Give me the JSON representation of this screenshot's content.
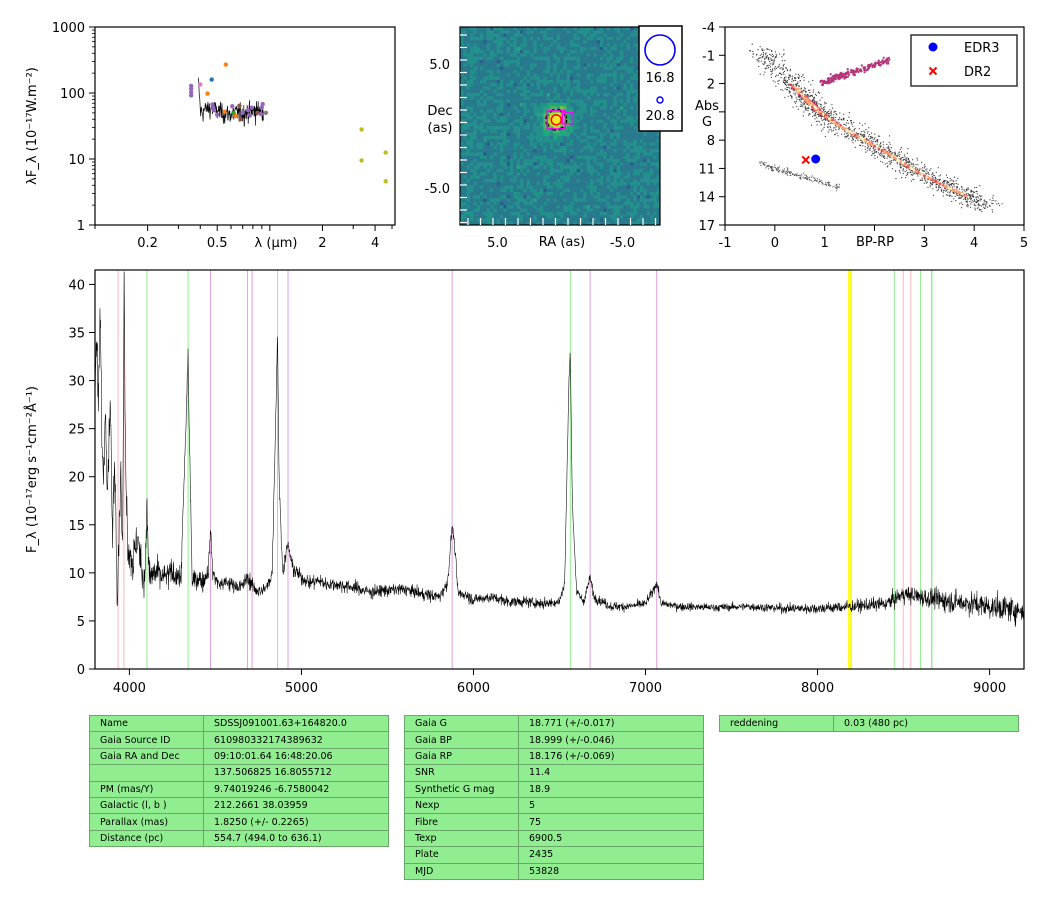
{
  "colors": {
    "spectrum": "#000000",
    "table_bg": "#90ee90",
    "edr3": "#0000ff",
    "dr2": "#ff0000",
    "halpha": "#90ee90",
    "helium": "#dda0dd",
    "calcium": "#ffb6c1",
    "telluric": "#ffff00"
  },
  "chart_data": [
    {
      "id": "sed",
      "type": "scatter",
      "xscale": "log",
      "yscale": "log",
      "xlim": [
        0.1,
        5.2
      ],
      "ylim": [
        1,
        1000
      ],
      "xlabel": "λ (μm)",
      "ylabel": "λF_λ (10⁻¹⁷W.m⁻²)",
      "x_ticks": [
        {
          "v": 0.2,
          "label": "0.2"
        },
        {
          "v": 0.5,
          "label": "0.5"
        },
        {
          "v": 2,
          "label": "2"
        },
        {
          "v": 4,
          "label": "4"
        }
      ],
      "y_ticks": [
        {
          "v": 1,
          "label": "1"
        },
        {
          "v": 10,
          "label": "10"
        },
        {
          "v": 100,
          "label": "100"
        },
        {
          "v": 1000,
          "label": "1000"
        }
      ],
      "points": [
        {
          "x": 0.355,
          "y": 128,
          "c": "#9467bd"
        },
        {
          "x": 0.355,
          "y": 115,
          "c": "#9467bd"
        },
        {
          "x": 0.355,
          "y": 102,
          "c": "#9467bd"
        },
        {
          "x": 0.355,
          "y": 92,
          "c": "#9467bd"
        },
        {
          "x": 0.4,
          "y": 135,
          "c": "#e377c2"
        },
        {
          "x": 0.44,
          "y": 98,
          "c": "#ff7f0e"
        },
        {
          "x": 0.465,
          "y": 160,
          "c": "#1f77b4"
        },
        {
          "x": 0.47,
          "y": 67,
          "c": "#9467bd"
        },
        {
          "x": 0.475,
          "y": 60,
          "c": "#9467bd"
        },
        {
          "x": 0.48,
          "y": 55,
          "c": "#9467bd"
        },
        {
          "x": 0.5,
          "y": 47,
          "c": "#9467bd"
        },
        {
          "x": 0.55,
          "y": 52,
          "c": "#ff7f0e"
        },
        {
          "x": 0.56,
          "y": 270,
          "c": "#ff7f0e"
        },
        {
          "x": 0.61,
          "y": 63,
          "c": "#9467bd"
        },
        {
          "x": 0.62,
          "y": 50,
          "c": "#2ca02c"
        },
        {
          "x": 0.64,
          "y": 45,
          "c": "#ff7f0e"
        },
        {
          "x": 0.67,
          "y": 64,
          "c": "#8c564b"
        },
        {
          "x": 0.68,
          "y": 40,
          "c": "#8c564b"
        },
        {
          "x": 0.7,
          "y": 50,
          "c": "#9467bd"
        },
        {
          "x": 0.75,
          "y": 55,
          "c": "#9467bd"
        },
        {
          "x": 0.77,
          "y": 46,
          "c": "#9467bd"
        },
        {
          "x": 0.79,
          "y": 60,
          "c": "#9467bd"
        },
        {
          "x": 0.85,
          "y": 50,
          "c": "#8c564b"
        },
        {
          "x": 0.89,
          "y": 48,
          "c": "#9467bd"
        },
        {
          "x": 0.9,
          "y": 60,
          "c": "#9467bd"
        },
        {
          "x": 0.91,
          "y": 68,
          "c": "#9467bd"
        },
        {
          "x": 0.95,
          "y": 50,
          "c": "#7f7f7f"
        },
        {
          "x": 3.35,
          "y": 28,
          "c": "#bcbd22"
        },
        {
          "x": 3.35,
          "y": 9.5,
          "c": "#bcbd22"
        },
        {
          "x": 4.6,
          "y": 12.5,
          "c": "#bcbd22"
        },
        {
          "x": 4.6,
          "y": 4.6,
          "c": "#bcbd22"
        }
      ],
      "spectrum_envelope": [
        [
          0.39,
          140
        ],
        [
          0.4,
          52
        ],
        [
          0.45,
          60
        ],
        [
          0.5,
          55
        ],
        [
          0.55,
          50
        ],
        [
          0.6,
          48
        ],
        [
          0.65,
          52
        ],
        [
          0.7,
          50
        ],
        [
          0.8,
          55
        ],
        [
          0.9,
          58
        ],
        [
          0.92,
          50
        ]
      ]
    },
    {
      "id": "image",
      "type": "heatmap",
      "xlabel": "RA (as)",
      "ylabel": "Dec\n(as)",
      "x_ticks": [
        {
          "v": 5,
          "label": "5.0"
        },
        {
          "v": -5,
          "label": "-5.0"
        }
      ],
      "y_ticks": [
        {
          "v": 5,
          "label": "5.0"
        },
        {
          "v": -5,
          "label": "-5.0"
        }
      ],
      "xlim": [
        8,
        -8
      ],
      "ylim": [
        -8,
        8
      ],
      "legend": [
        {
          "label": "16.8",
          "size": "large"
        },
        {
          "label": "20.8",
          "size": "small"
        }
      ]
    },
    {
      "id": "hrd",
      "type": "scatter",
      "xlabel": "BP-RP",
      "ylabel": "Abs\nG",
      "xlim": [
        -1,
        5
      ],
      "ylim": [
        17,
        -4
      ],
      "x_ticks": [
        {
          "v": -1,
          "label": "-1"
        },
        {
          "v": 0,
          "label": "0"
        },
        {
          "v": 1,
          "label": "1"
        },
        {
          "v": 2,
          "label": ""
        },
        {
          "v": 3,
          "label": "3"
        },
        {
          "v": 4,
          "label": "4"
        },
        {
          "v": 5,
          "label": "5"
        }
      ],
      "y_ticks": [
        {
          "v": -4,
          "label": "-4"
        },
        {
          "v": -1,
          "label": "-1"
        },
        {
          "v": 2,
          "label": "2"
        },
        {
          "v": 5,
          "label": ""
        },
        {
          "v": 8,
          "label": "8"
        },
        {
          "v": 11,
          "label": "11"
        },
        {
          "v": 14,
          "label": "14"
        },
        {
          "v": 17,
          "label": "17"
        }
      ],
      "series": [
        {
          "name": "EDR3",
          "marker": "circle",
          "color": "#0000ff",
          "x": [
            0.82
          ],
          "y": [
            10.0
          ]
        },
        {
          "name": "DR2",
          "marker": "x",
          "color": "#ff0000",
          "x": [
            0.62
          ],
          "y": [
            10.1
          ]
        }
      ],
      "legend_position": "top-right"
    },
    {
      "id": "spectrum",
      "type": "line",
      "xlim": [
        3800,
        9200
      ],
      "ylim": [
        0,
        41.5
      ],
      "ylabel": "F_λ (10⁻¹⁷erg s⁻¹cm⁻²Å⁻¹)",
      "x_ticks": [
        4000,
        5000,
        6000,
        7000,
        8000,
        9000
      ],
      "y_ticks": [
        0,
        5,
        10,
        15,
        20,
        25,
        30,
        35,
        40
      ],
      "flux": [
        [
          3800,
          30
        ],
        [
          3810,
          35
        ],
        [
          3820,
          26
        ],
        [
          3830,
          38
        ],
        [
          3840,
          24
        ],
        [
          3850,
          20
        ],
        [
          3860,
          28
        ],
        [
          3870,
          18
        ],
        [
          3880,
          22
        ],
        [
          3890,
          28
        ],
        [
          3900,
          14
        ],
        [
          3915,
          22
        ],
        [
          3930,
          8
        ],
        [
          3950,
          21
        ],
        [
          3960,
          12
        ],
        [
          3970,
          41
        ],
        [
          3975,
          25
        ],
        [
          3990,
          13
        ],
        [
          4020,
          11
        ],
        [
          4050,
          14
        ],
        [
          4070,
          10
        ],
        [
          4090,
          9.5
        ],
        [
          4101,
          17
        ],
        [
          4115,
          9.5
        ],
        [
          4150,
          10
        ],
        [
          4200,
          9.5
        ],
        [
          4250,
          10
        ],
        [
          4300,
          9.5
        ],
        [
          4330,
          26
        ],
        [
          4340,
          33
        ],
        [
          4350,
          23
        ],
        [
          4365,
          9
        ],
        [
          4400,
          9.5
        ],
        [
          4430,
          9
        ],
        [
          4460,
          10.5
        ],
        [
          4471,
          14.5
        ],
        [
          4485,
          10
        ],
        [
          4520,
          8.8
        ],
        [
          4560,
          9
        ],
        [
          4600,
          8.8
        ],
        [
          4650,
          8.5
        ],
        [
          4686,
          9.5
        ],
        [
          4720,
          8.5
        ],
        [
          4760,
          8
        ],
        [
          4800,
          8.5
        ],
        [
          4830,
          10
        ],
        [
          4850,
          26
        ],
        [
          4861,
          35
        ],
        [
          4870,
          20
        ],
        [
          4890,
          10
        ],
        [
          4920,
          13
        ],
        [
          4950,
          10.5
        ],
        [
          5000,
          9.5
        ],
        [
          5050,
          9
        ],
        [
          5100,
          9.2
        ],
        [
          5150,
          8.8
        ],
        [
          5200,
          8.8
        ],
        [
          5300,
          8.5
        ],
        [
          5400,
          8
        ],
        [
          5500,
          8.2
        ],
        [
          5600,
          8.3
        ],
        [
          5700,
          7.8
        ],
        [
          5800,
          7.5
        ],
        [
          5850,
          9
        ],
        [
          5876,
          15
        ],
        [
          5890,
          13
        ],
        [
          5910,
          7.8
        ],
        [
          5950,
          7.8
        ],
        [
          6000,
          7.2
        ],
        [
          6100,
          7.5
        ],
        [
          6200,
          7
        ],
        [
          6300,
          7
        ],
        [
          6400,
          6.8
        ],
        [
          6500,
          7
        ],
        [
          6530,
          9
        ],
        [
          6555,
          30
        ],
        [
          6563,
          33
        ],
        [
          6575,
          17
        ],
        [
          6600,
          8
        ],
        [
          6640,
          7
        ],
        [
          6678,
          9.5
        ],
        [
          6700,
          7.5
        ],
        [
          6800,
          6.5
        ],
        [
          6900,
          6.5
        ],
        [
          7000,
          6.8
        ],
        [
          7040,
          8
        ],
        [
          7065,
          9
        ],
        [
          7090,
          6.8
        ],
        [
          7200,
          6.5
        ],
        [
          7400,
          6.4
        ],
        [
          7600,
          6.5
        ],
        [
          7800,
          6.3
        ],
        [
          8000,
          6.3
        ],
        [
          8200,
          6.5
        ],
        [
          8400,
          6.8
        ],
        [
          8500,
          7.8
        ],
        [
          8600,
          7.5
        ],
        [
          8700,
          7.2
        ],
        [
          8800,
          7
        ],
        [
          8900,
          6.8
        ],
        [
          9000,
          6.5
        ],
        [
          9100,
          6.3
        ],
        [
          9200,
          6
        ]
      ],
      "noise_amplitude": [
        [
          3800,
          4
        ],
        [
          4500,
          1.2
        ],
        [
          5500,
          1
        ],
        [
          6500,
          0.8
        ],
        [
          7500,
          0.6
        ],
        [
          8300,
          1
        ],
        [
          8800,
          1.8
        ],
        [
          9200,
          2
        ]
      ],
      "lines": [
        {
          "x": 3934,
          "c": "#ffb6c1"
        },
        {
          "x": 3968,
          "c": "#ffb6c1"
        },
        {
          "x": 4102,
          "c": "#90ee90"
        },
        {
          "x": 4341,
          "c": "#90ee90"
        },
        {
          "x": 4471,
          "c": "#dda0dd"
        },
        {
          "x": 4686,
          "c": "#dda0dd"
        },
        {
          "x": 4713,
          "c": "#dda0dd"
        },
        {
          "x": 4861,
          "c": "#90ee90"
        },
        {
          "x": 4922,
          "c": "#dda0dd"
        },
        {
          "x": 5876,
          "c": "#dda0dd"
        },
        {
          "x": 6563,
          "c": "#90ee90"
        },
        {
          "x": 6678,
          "c": "#dda0dd"
        },
        {
          "x": 7065,
          "c": "#dda0dd"
        },
        {
          "x": 8183,
          "c": "#ffff00"
        },
        {
          "x": 8195,
          "c": "#ffff00"
        },
        {
          "x": 8446,
          "c": "#90ee90"
        },
        {
          "x": 8498,
          "c": "#ffb6c1"
        },
        {
          "x": 8542,
          "c": "#ffb6c1"
        },
        {
          "x": 8598,
          "c": "#90ee90"
        },
        {
          "x": 8662,
          "c": "#ffb6c1"
        },
        {
          "x": 8665,
          "c": "#90ee90"
        }
      ]
    }
  ],
  "tables": {
    "t1": [
      [
        "Name",
        "SDSSJ091001.63+164820.0"
      ],
      [
        "Gaia Source ID",
        "610980332174389632"
      ],
      [
        "Gaia RA and Dec",
        "09:10:01.64    16:48:20.06"
      ],
      [
        "",
        "137.506825    16.8055712"
      ],
      [
        "PM (mas/Y)",
        "9.74019246    -6.7580042"
      ],
      [
        "Galactic (l, b )",
        "212.2661    38.03959"
      ],
      [
        "Parallax (mas)",
        "1.8250 (+/- 0.2265)"
      ],
      [
        "Distance (pc)",
        "554.7 (494.0 to 636.1)"
      ]
    ],
    "t2": [
      [
        "Gaia G",
        "18.771 (+/-0.017)"
      ],
      [
        "Gaia BP",
        "18.999 (+/-0.046)"
      ],
      [
        "Gaia RP",
        "18.176 (+/-0.069)"
      ],
      [
        "SNR",
        "11.4"
      ],
      [
        "Synthetic G mag",
        "18.9"
      ],
      [
        "Nexp",
        "5"
      ],
      [
        "Fibre",
        "75"
      ],
      [
        "Texp",
        "6900.5"
      ],
      [
        "Plate",
        "2435"
      ],
      [
        "MJD",
        "53828"
      ]
    ],
    "t3": [
      [
        "reddening",
        "0.03 (480 pc)"
      ]
    ]
  }
}
